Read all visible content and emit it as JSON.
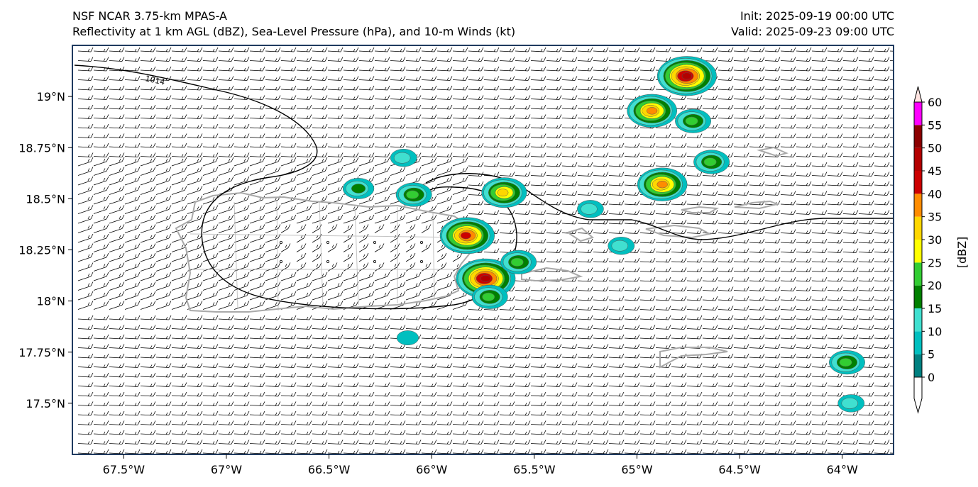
{
  "header": {
    "model": "NSF NCAR 3.75-km MPAS-A",
    "fields": "Reflectivity at 1 km AGL (dBZ), Sea-Level Pressure (hPa), and 10-m Winds (kt)",
    "init": "Init: 2025-09-19 00:00 UTC",
    "valid": "Valid: 2025-09-23 09:00 UTC"
  },
  "map": {
    "lon_range": [
      -67.75,
      -63.75
    ],
    "lat_range": [
      17.25,
      19.25
    ],
    "lon_ticks": [
      "67.5°W",
      "67°W",
      "66.5°W",
      "66°W",
      "65.5°W",
      "65°W",
      "64.5°W",
      "64°W"
    ],
    "lat_ticks": [
      "19°N",
      "18.75°N",
      "18.5°N",
      "18.25°N",
      "18°N",
      "17.75°N",
      "17.5°N"
    ],
    "isobar_label": "1014",
    "colors": {
      "coast": "#a9a9a9",
      "isobar": "#000000",
      "frame": "#1f3a5f"
    }
  },
  "colorbar": {
    "label": "[dBZ]",
    "ticks": [
      "0",
      "5",
      "10",
      "15",
      "20",
      "25",
      "30",
      "35",
      "40",
      "45",
      "50",
      "55",
      "60"
    ],
    "levels": [
      0,
      5,
      10,
      15,
      20,
      25,
      30,
      35,
      40,
      45,
      50,
      55,
      60
    ],
    "colors": [
      "#008080",
      "#00bfbf",
      "#40e0d0",
      "#008000",
      "#32cd32",
      "#ffff00",
      "#ffd700",
      "#ff8c00",
      "#cc0000",
      "#b30000",
      "#8b0000",
      "#ff00ff",
      "#ffe4e1"
    ]
  },
  "echoes": [
    {
      "lon": -64.76,
      "lat": 19.1,
      "peak": 45
    },
    {
      "lon": -64.93,
      "lat": 18.93,
      "peak": 35
    },
    {
      "lon": -64.73,
      "lat": 18.88,
      "peak": 20
    },
    {
      "lon": -64.64,
      "lat": 18.68,
      "peak": 20
    },
    {
      "lon": -64.88,
      "lat": 18.57,
      "peak": 35
    },
    {
      "lon": -66.14,
      "lat": 18.7,
      "peak": 10
    },
    {
      "lon": -66.36,
      "lat": 18.55,
      "peak": 15
    },
    {
      "lon": -66.09,
      "lat": 18.52,
      "peak": 20
    },
    {
      "lon": -65.65,
      "lat": 18.53,
      "peak": 30
    },
    {
      "lon": -65.23,
      "lat": 18.45,
      "peak": 10
    },
    {
      "lon": -65.83,
      "lat": 18.32,
      "peak": 40
    },
    {
      "lon": -65.08,
      "lat": 18.27,
      "peak": 10
    },
    {
      "lon": -65.74,
      "lat": 18.11,
      "peak": 45
    },
    {
      "lon": -65.72,
      "lat": 18.02,
      "peak": 20
    },
    {
      "lon": -65.58,
      "lat": 18.19,
      "peak": 20
    },
    {
      "lon": -63.98,
      "lat": 17.7,
      "peak": 20
    },
    {
      "lon": -63.96,
      "lat": 17.5,
      "peak": 10
    },
    {
      "lon": -66.12,
      "lat": 17.82,
      "peak": 5
    }
  ]
}
